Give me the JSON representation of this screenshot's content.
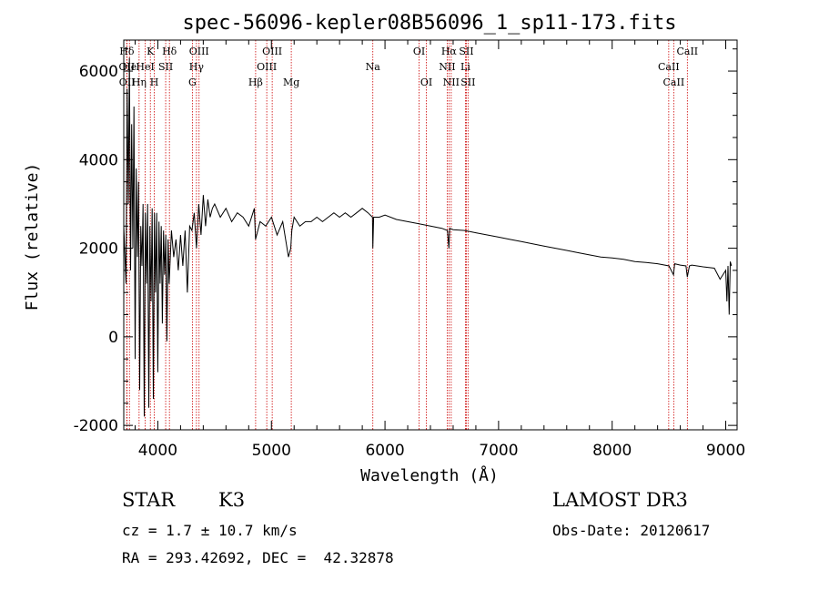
{
  "chart_data": {
    "type": "line",
    "title": "spec-56096-kepler08B56096_1_sp11-173.fits",
    "xlabel": "Wavelength (Å)",
    "ylabel": "Flux (relative)",
    "xlim": [
      3700,
      9100
    ],
    "ylim": [
      -2100,
      6700
    ],
    "xticks": [
      4000,
      5000,
      6000,
      7000,
      8000,
      9000
    ],
    "xtick_labels": [
      "4000",
      "5000",
      "6000",
      "7000",
      "8000",
      "9000"
    ],
    "yticks": [
      -2000,
      0,
      2000,
      4000,
      6000
    ],
    "ytick_labels": [
      "-2000",
      "0",
      "2000",
      "4000",
      "6000"
    ],
    "spectrum": {
      "x": [
        3700,
        3720,
        3730,
        3740,
        3750,
        3760,
        3770,
        3780,
        3790,
        3800,
        3810,
        3820,
        3830,
        3840,
        3850,
        3860,
        3870,
        3880,
        3890,
        3900,
        3910,
        3920,
        3930,
        3940,
        3950,
        3960,
        3970,
        3980,
        3990,
        4000,
        4010,
        4020,
        4030,
        4040,
        4050,
        4060,
        4070,
        4080,
        4090,
        4100,
        4120,
        4140,
        4160,
        4180,
        4200,
        4220,
        4240,
        4260,
        4280,
        4300,
        4320,
        4340,
        4360,
        4380,
        4400,
        4420,
        4440,
        4460,
        4480,
        4500,
        4550,
        4600,
        4650,
        4700,
        4750,
        4800,
        4850,
        4860,
        4900,
        4950,
        5000,
        5050,
        5100,
        5150,
        5170,
        5180,
        5200,
        5250,
        5300,
        5350,
        5400,
        5450,
        5500,
        5550,
        5600,
        5650,
        5700,
        5750,
        5800,
        5850,
        5890,
        5893,
        5900,
        5950,
        6000,
        6100,
        6200,
        6300,
        6400,
        6500,
        6550,
        6563,
        6570,
        6600,
        6700,
        6800,
        6900,
        7000,
        7100,
        7200,
        7300,
        7400,
        7500,
        7600,
        7700,
        7800,
        7900,
        8000,
        8100,
        8200,
        8300,
        8400,
        8500,
        8540,
        8550,
        8600,
        8650,
        8662,
        8680,
        8700,
        8800,
        8900,
        8950,
        9000,
        9010,
        9020,
        9030,
        9040,
        9050
      ],
      "y": [
        2500,
        1200,
        5600,
        3000,
        6300,
        1500,
        4800,
        2000,
        5200,
        -500,
        3800,
        1800,
        3500,
        -1200,
        2500,
        1600,
        3000,
        -1800,
        2800,
        1200,
        3000,
        -1600,
        2500,
        800,
        2900,
        -1400,
        2800,
        1000,
        2800,
        -800,
        2600,
        1200,
        2500,
        300,
        2400,
        1400,
        2300,
        -100,
        2200,
        1200,
        2400,
        1800,
        2200,
        1500,
        2300,
        1600,
        2400,
        1000,
        2500,
        2400,
        2800,
        2000,
        3000,
        2300,
        3200,
        2500,
        3100,
        2700,
        2900,
        3000,
        2700,
        2900,
        2600,
        2800,
        2700,
        2500,
        2900,
        2200,
        2600,
        2500,
        2700,
        2300,
        2600,
        1800,
        2000,
        2400,
        2700,
        2500,
        2600,
        2600,
        2700,
        2600,
        2700,
        2800,
        2700,
        2800,
        2700,
        2800,
        2900,
        2800,
        2700,
        2000,
        2700,
        2700,
        2750,
        2650,
        2600,
        2550,
        2500,
        2450,
        2400,
        2000,
        2450,
        2420,
        2400,
        2350,
        2300,
        2250,
        2200,
        2150,
        2100,
        2050,
        2000,
        1950,
        1900,
        1850,
        1800,
        1780,
        1750,
        1700,
        1680,
        1650,
        1600,
        1400,
        1650,
        1620,
        1600,
        1350,
        1600,
        1620,
        1580,
        1550,
        1300,
        1500,
        800,
        1600,
        500,
        1700,
        1600
      ]
    },
    "lines": [
      {
        "label": "Hδ",
        "x": 3727,
        "row": 0
      },
      {
        "label": "OII",
        "x": 3727,
        "row": 1
      },
      {
        "label": "OII",
        "x": 3729,
        "row": 2
      },
      {
        "label": "He",
        "x": 3750,
        "row": 1
      },
      {
        "label": "Hη",
        "x": 3835,
        "row": 2
      },
      {
        "label": "K",
        "x": 3934,
        "row": 0
      },
      {
        "label": "HeI",
        "x": 3889,
        "row": 1
      },
      {
        "label": "H",
        "x": 3969,
        "row": 2
      },
      {
        "label": "Hδ",
        "x": 4102,
        "row": 0
      },
      {
        "label": "SII",
        "x": 4069,
        "row": 1
      },
      {
        "label": "OIII",
        "x": 4363,
        "row": 0
      },
      {
        "label": "Hγ",
        "x": 4340,
        "row": 1
      },
      {
        "label": "G",
        "x": 4304,
        "row": 2
      },
      {
        "label": "OIII",
        "x": 5007,
        "row": 0
      },
      {
        "label": "OIII",
        "x": 4959,
        "row": 1
      },
      {
        "label": "Hβ",
        "x": 4861,
        "row": 2
      },
      {
        "label": "Mg",
        "x": 5175,
        "row": 2
      },
      {
        "label": "Na",
        "x": 5893,
        "row": 1
      },
      {
        "label": "OI",
        "x": 6300,
        "row": 0
      },
      {
        "label": "OI",
        "x": 6364,
        "row": 2
      },
      {
        "label": "Hα",
        "x": 6563,
        "row": 0
      },
      {
        "label": "SII",
        "x": 6716,
        "row": 0
      },
      {
        "label": "NII",
        "x": 6548,
        "row": 1
      },
      {
        "label": "Li",
        "x": 6708,
        "row": 1
      },
      {
        "label": "NII",
        "x": 6583,
        "row": 2
      },
      {
        "label": "SII",
        "x": 6731,
        "row": 2
      },
      {
        "label": "CaII",
        "x": 8662,
        "row": 0
      },
      {
        "label": "CaII",
        "x": 8498,
        "row": 1
      },
      {
        "label": "CaII",
        "x": 8542,
        "row": 2
      }
    ],
    "line_color": "#cc0000",
    "spectrum_color": "#000000"
  },
  "info": {
    "class": "STAR",
    "subclass": "K3",
    "survey": "LAMOST DR3",
    "cz": "cz = 1.7 ± 10.7 km/s",
    "obs_date": "Obs-Date: 20120617",
    "coords": "RA = 293.42692, DEC =  42.32878"
  }
}
